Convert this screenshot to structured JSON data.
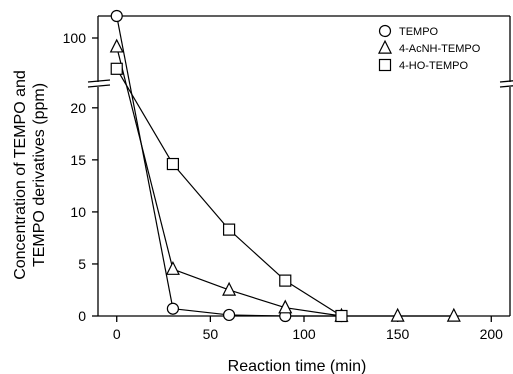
{
  "chart_data": {
    "type": "line",
    "title": "",
    "xlabel": "Reaction time (min)",
    "ylabel_lines": [
      "Concentration of TEMPO and",
      "TEMPO derivatives (ppm)"
    ],
    "xlim": [
      -10,
      210
    ],
    "x_ticks": [
      0,
      50,
      100,
      150,
      200
    ],
    "y_axis_broken": true,
    "y_lower_range": [
      0,
      22
    ],
    "y_lower_ticks": [
      0,
      5,
      10,
      15,
      20
    ],
    "y_upper_range": [
      90,
      105
    ],
    "y_upper_ticks": [
      100
    ],
    "grid": false,
    "legend_position": "top-right",
    "series": [
      {
        "name": "TEMPO",
        "marker": "circle",
        "x": [
          0,
          30,
          60,
          90,
          120
        ],
        "y": [
          105,
          0.7,
          0.1,
          0.0,
          0.0
        ]
      },
      {
        "name": "4-AcNH-TEMPO",
        "marker": "triangle",
        "x": [
          0,
          30,
          60,
          90,
          120,
          150,
          180
        ],
        "y": [
          98,
          4.5,
          2.5,
          0.8,
          0.0,
          0.0,
          0.0
        ]
      },
      {
        "name": "4-HO-TEMPO",
        "marker": "square",
        "x": [
          0,
          30,
          60,
          90,
          120
        ],
        "y": [
          93,
          14.6,
          8.3,
          3.4,
          0.0
        ]
      }
    ]
  }
}
